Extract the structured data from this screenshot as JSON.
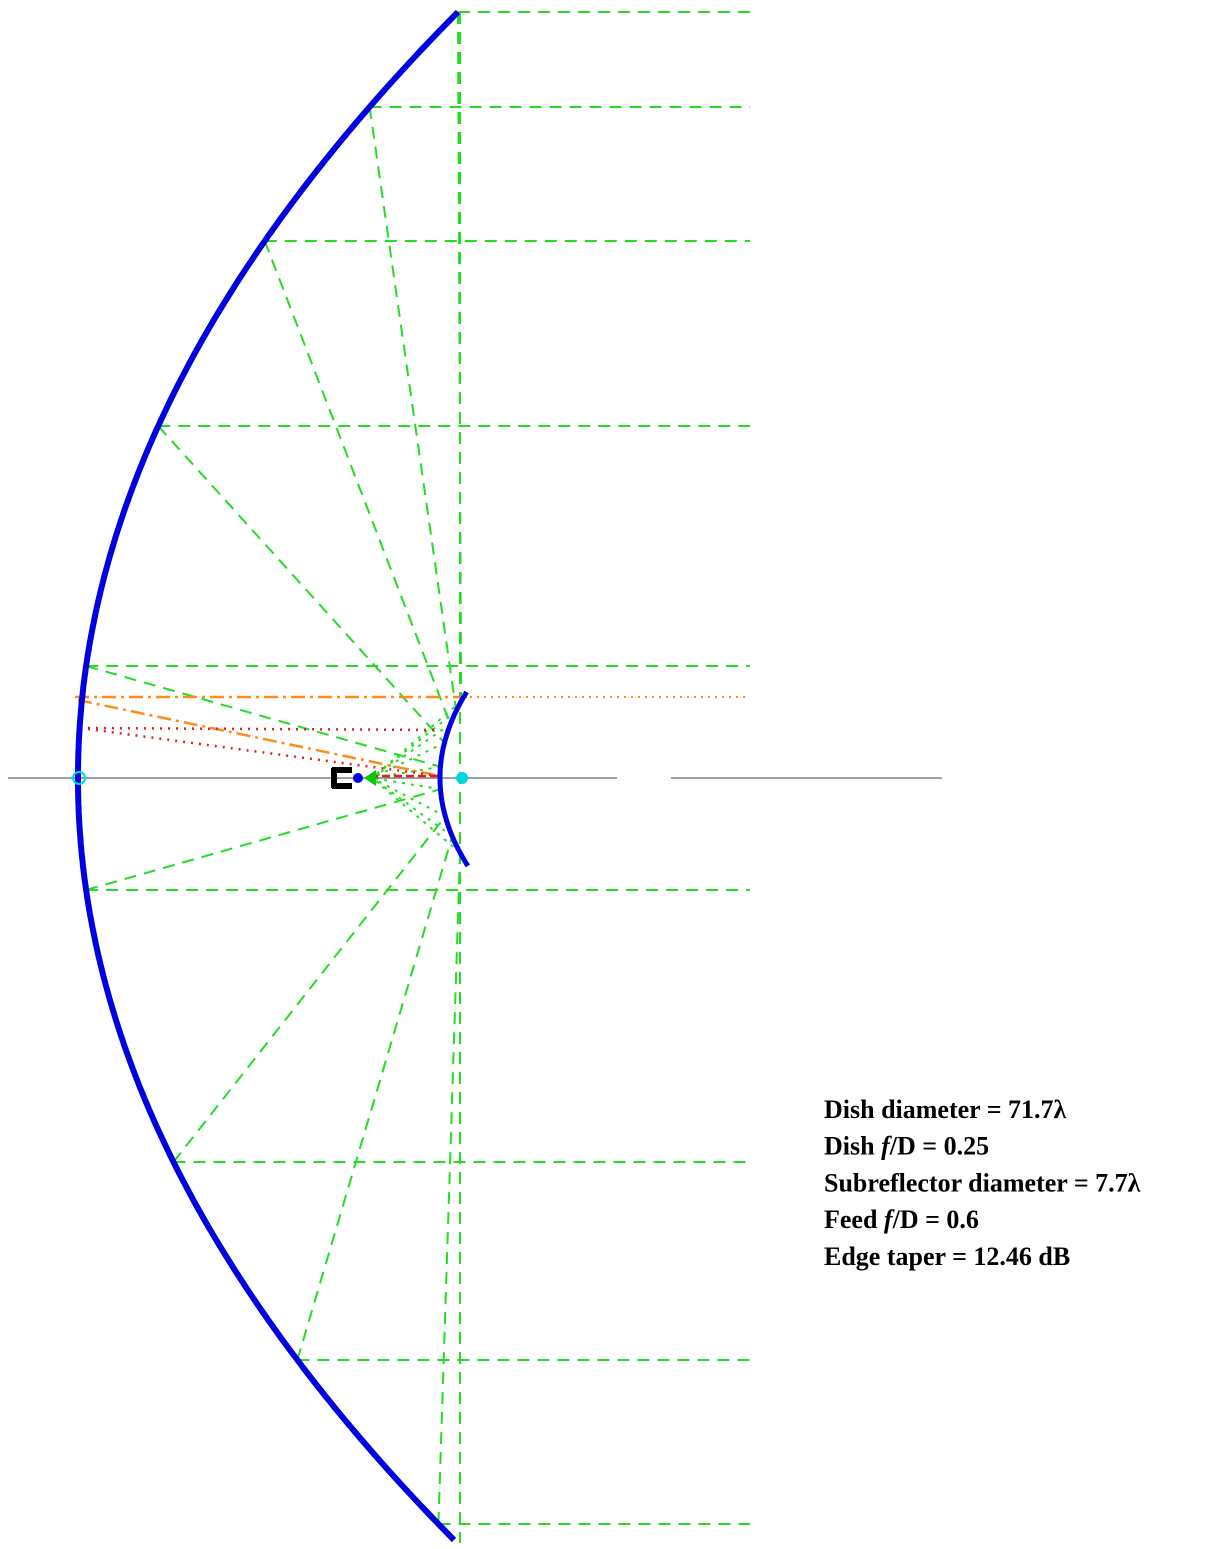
{
  "info": {
    "lines": [
      [
        "Dish diameter = 71.7λ"
      ],
      [
        "Dish ",
        "f",
        "/D = 0.25"
      ],
      [
        "Subreflector diameter = 7.7λ"
      ],
      [
        "Feed ",
        "f",
        "/D = 0.6"
      ],
      [
        "Edge taper = 12.46 dB"
      ]
    ]
  }
}
